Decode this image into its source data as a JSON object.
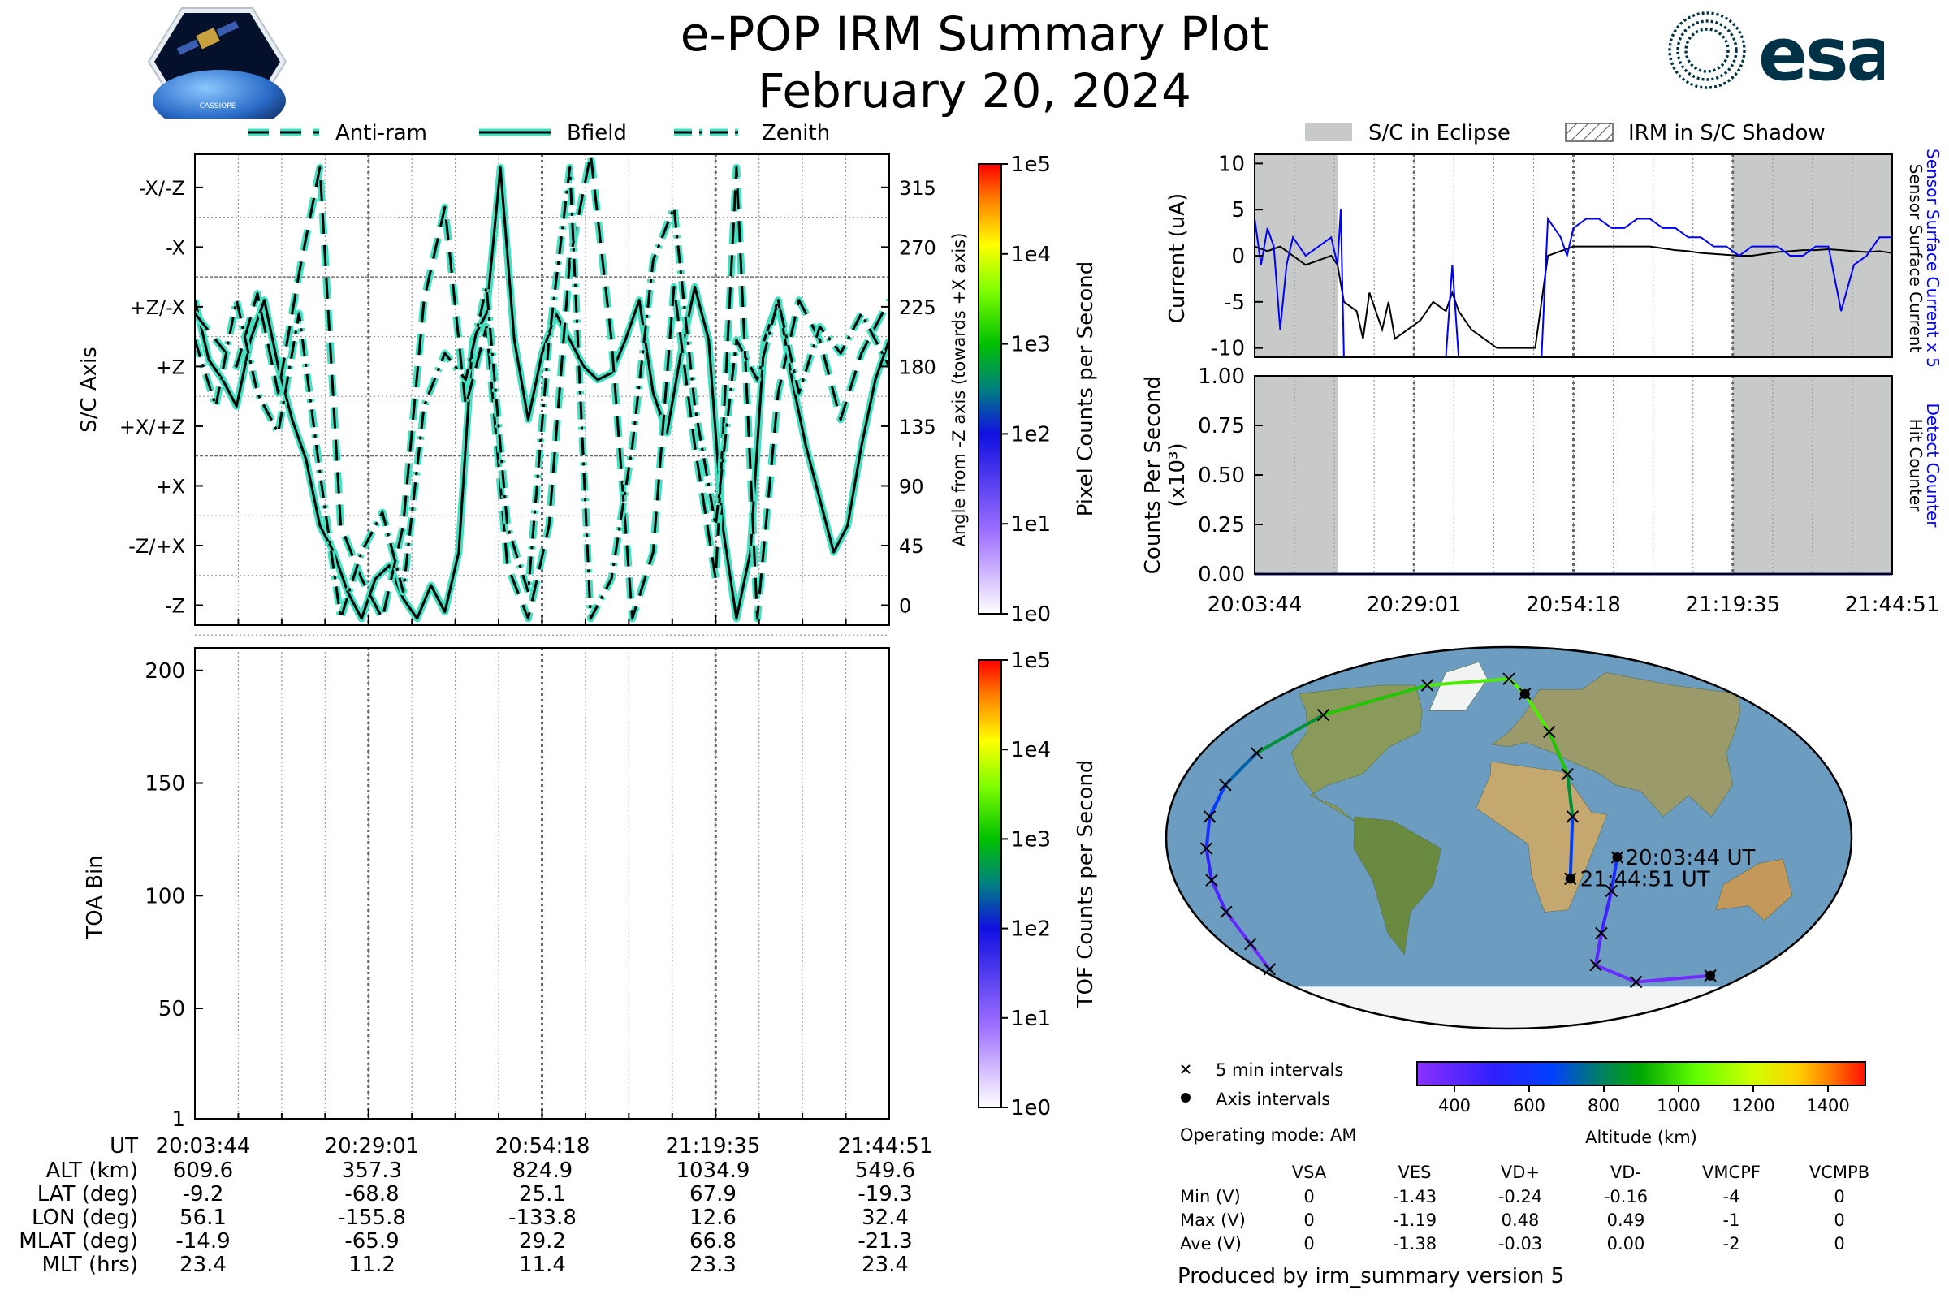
{
  "header": {
    "title": "e-POP IRM Summary Plot",
    "date": "February 20, 2024",
    "cassiope_logo_text": "CASSIOPE",
    "esa_logo_text": "esa"
  },
  "colors": {
    "trace": "#000000",
    "trace_halo": "#40e0c0",
    "blue_series": "#0000ff",
    "eclipse_shade": "#c8caca",
    "esa_blue": "#003247"
  },
  "chart_data": [
    {
      "id": "sc_axis_panel",
      "type": "line",
      "legend": [
        "Anti-ram",
        "Bfield",
        "Zenith"
      ],
      "legend_styles": [
        "dashed",
        "solid",
        "dashdot"
      ],
      "ylabel": "S/C Axis",
      "ylabel_right": "Angle from -Z axis (towards +X axis)",
      "y_tick_labels": [
        "-X/-Z",
        "-X",
        "+Z/-X",
        "+Z",
        "+X/+Z",
        "+X",
        "-Z/+X",
        "-Z"
      ],
      "y_tick_values": [
        315,
        270,
        225,
        180,
        135,
        90,
        45,
        0
      ],
      "ylim": [
        -15,
        340
      ],
      "x_tick_labels": [
        "20:03:44",
        "20:29:01",
        "20:54:18",
        "21:19:35",
        "21:44:51"
      ],
      "colorbar": {
        "label": "Pixel Counts per Second",
        "ticks": [
          "1e0",
          "1e1",
          "1e2",
          "1e3",
          "1e4",
          "1e5"
        ]
      },
      "series": [
        {
          "name": "Bfield",
          "x": [
            0,
            2,
            4,
            6,
            8,
            10,
            12,
            14,
            16,
            18,
            20,
            22,
            24,
            26,
            28,
            30,
            32,
            34,
            36,
            38,
            40,
            42,
            44,
            46,
            48,
            50,
            52,
            54,
            56,
            58,
            60,
            62,
            64,
            66,
            68,
            70,
            72,
            74,
            76,
            78,
            80,
            82,
            84,
            86,
            88,
            90,
            92,
            94,
            96,
            98,
            100
          ],
          "y": [
            230,
            185,
            170,
            150,
            200,
            230,
            180,
            140,
            110,
            60,
            40,
            10,
            -10,
            20,
            30,
            5,
            -10,
            15,
            -5,
            40,
            200,
            220,
            330,
            200,
            140,
            190,
            220,
            200,
            180,
            170,
            175,
            200,
            230,
            160,
            130,
            190,
            240,
            200,
            60,
            -10,
            40,
            200,
            230,
            170,
            120,
            80,
            40,
            60,
            120,
            170,
            200
          ]
        },
        {
          "name": "Anti-ram",
          "x": [
            0,
            3,
            6,
            9,
            12,
            15,
            18,
            21,
            24,
            27,
            30,
            33,
            36,
            39,
            42,
            45,
            48,
            51,
            54,
            57,
            60,
            63,
            66,
            69,
            72,
            75,
            78,
            81,
            84,
            87,
            90,
            93,
            96,
            100
          ],
          "y": [
            220,
            200,
            180,
            235,
            160,
            250,
            330,
            60,
            20,
            -10,
            60,
            230,
            300,
            150,
            210,
            30,
            -10,
            60,
            260,
            340,
            200,
            -10,
            40,
            240,
            120,
            20,
            330,
            -10,
            160,
            230,
            200,
            140,
            190,
            230
          ]
        },
        {
          "name": "Zenith",
          "x": [
            0,
            3,
            6,
            9,
            12,
            15,
            18,
            21,
            24,
            27,
            30,
            33,
            36,
            39,
            42,
            45,
            48,
            51,
            54,
            57,
            60,
            63,
            66,
            69,
            72,
            75,
            78,
            81,
            84,
            87,
            90,
            93,
            96,
            100
          ],
          "y": [
            200,
            150,
            230,
            160,
            130,
            220,
            100,
            -10,
            40,
            70,
            10,
            150,
            190,
            170,
            240,
            60,
            10,
            200,
            330,
            -10,
            20,
            120,
            260,
            300,
            150,
            60,
            200,
            170,
            230,
            160,
            210,
            190,
            220,
            180
          ]
        }
      ]
    },
    {
      "id": "toa_panel",
      "type": "heatmap",
      "ylabel": "TOA Bin",
      "y_ticks": [
        1,
        50,
        100,
        150,
        200
      ],
      "ylim": [
        1,
        210
      ],
      "x_tick_labels": [
        "20:03:44",
        "20:29:01",
        "20:54:18",
        "21:19:35",
        "21:44:51"
      ],
      "colorbar": {
        "label": "TOF Counts per Second",
        "ticks": [
          "1e0",
          "1e1",
          "1e2",
          "1e3",
          "1e4",
          "1e5"
        ]
      },
      "values": []
    },
    {
      "id": "current_panel",
      "type": "line",
      "legend": [
        "S/C in Eclipse",
        "IRM in S/C Shadow"
      ],
      "ylabel": "Current (uA)",
      "ylabel_right_blue": "Sensor Surface Current x 5",
      "ylabel_right_black": "Sensor Surface Current",
      "y_ticks": [
        10,
        5,
        0,
        -5,
        -10
      ],
      "ylim": [
        -11,
        11
      ],
      "eclipse_bands": [
        [
          0,
          13
        ],
        [
          75,
          100
        ]
      ],
      "series": [
        {
          "name": "Sensor Surface Current",
          "x": [
            0,
            2,
            4,
            6,
            8,
            10,
            12,
            13,
            14,
            16,
            17,
            18,
            20,
            21,
            22,
            24,
            26,
            28,
            30,
            31,
            32,
            34,
            36,
            38,
            40,
            42,
            44,
            45,
            46,
            48,
            50,
            52,
            54,
            56,
            58,
            60,
            62,
            64,
            66,
            68,
            70,
            72,
            74,
            76,
            78,
            80,
            82,
            84,
            86,
            88,
            90,
            92,
            94,
            96,
            98,
            100
          ],
          "y": [
            1,
            0.5,
            1,
            0,
            -1,
            -0.5,
            0,
            -1,
            -5,
            -6,
            -9,
            -4,
            -8,
            -5,
            -9,
            -8,
            -7,
            -5,
            -6,
            -4,
            -6,
            -8,
            -9,
            -10,
            -10,
            -10,
            -10,
            -5,
            0,
            0.5,
            1,
            1,
            1,
            1,
            1,
            1,
            1,
            0.8,
            0.6,
            0.5,
            0.3,
            0.2,
            0.1,
            0,
            0,
            0.2,
            0.4,
            0.5,
            0.6,
            0.6,
            0.7,
            0.6,
            0.5,
            0.4,
            0.5,
            0.3
          ]
        },
        {
          "name": "Sensor Surface Current x 5",
          "x": [
            0,
            1,
            2,
            3,
            4,
            5,
            6,
            7,
            8,
            10,
            12,
            13,
            13.5,
            14,
            16,
            18,
            20,
            22,
            24,
            26,
            28,
            30,
            31,
            32,
            33,
            34,
            36,
            38,
            40,
            42,
            44,
            45,
            46,
            48,
            49,
            50,
            52,
            54,
            56,
            58,
            60,
            62,
            64,
            66,
            68,
            70,
            72,
            74,
            76,
            78,
            80,
            82,
            84,
            86,
            88,
            90,
            92,
            94,
            96,
            98,
            100
          ],
          "y": [
            4,
            -1,
            3,
            1,
            -8,
            -1,
            2,
            1,
            0,
            1,
            2,
            -1,
            5,
            -11,
            -11,
            -11,
            -11,
            -11,
            -11,
            -11,
            -11,
            -11,
            -1,
            -11,
            -11,
            -11,
            -11,
            -11,
            -11,
            -11,
            -11,
            -11,
            4,
            2,
            0,
            3,
            4,
            4,
            3,
            3,
            4,
            4,
            3,
            3,
            2,
            2,
            1,
            1,
            0,
            1,
            1,
            1,
            0,
            0,
            1,
            1,
            -6,
            -1,
            0,
            2,
            2
          ]
        }
      ]
    },
    {
      "id": "counts_panel",
      "type": "line",
      "ylabel": "Counts Per Second (x10³)",
      "ylabel_right_blue": "Detect Counter",
      "ylabel_right_black": "Hit Counter",
      "y_ticks": [
        "1.00",
        "0.75",
        "0.50",
        "0.25",
        "0.00"
      ],
      "ylim": [
        0,
        1
      ],
      "x_tick_labels": [
        "20:03:44",
        "20:29:01",
        "20:54:18",
        "21:19:35",
        "21:44:51"
      ],
      "series": [
        {
          "name": "Hit Counter",
          "x": [
            0,
            100
          ],
          "y": [
            0,
            0
          ]
        },
        {
          "name": "Detect Counter",
          "x": [
            0,
            100
          ],
          "y": [
            0,
            0
          ]
        }
      ]
    },
    {
      "id": "orbit_map",
      "type": "scatter",
      "start_label": "20:03:44 UT",
      "end_label": "21:44:51 UT",
      "colorbar": {
        "label": "Altitude (km)",
        "ticks": [
          400,
          600,
          800,
          1000,
          1200,
          1400
        ],
        "range": [
          300,
          1500
        ]
      },
      "track": [
        {
          "lon": 56.1,
          "lat": -9.2,
          "alt": 610
        },
        {
          "lon": 55,
          "lat": -25,
          "alt": 520
        },
        {
          "lon": 55,
          "lat": -45,
          "alt": 430
        },
        {
          "lon": 60,
          "lat": -60,
          "alt": 380
        },
        {
          "lon": 100,
          "lat": -68,
          "alt": 360
        },
        {
          "lon": 150,
          "lat": -65,
          "alt": 350
        },
        {
          "lon": -170,
          "lat": -62,
          "alt": 350
        },
        {
          "lon": -160,
          "lat": -50,
          "alt": 360
        },
        {
          "lon": -158,
          "lat": -35,
          "alt": 400
        },
        {
          "lon": -157,
          "lat": -20,
          "alt": 460
        },
        {
          "lon": -156,
          "lat": -5,
          "alt": 530
        },
        {
          "lon": -155,
          "lat": 10,
          "alt": 600
        },
        {
          "lon": -152,
          "lat": 25,
          "alt": 680
        },
        {
          "lon": -145,
          "lat": 40,
          "alt": 780
        },
        {
          "lon": -125,
          "lat": 58,
          "alt": 900
        },
        {
          "lon": -70,
          "lat": 72,
          "alt": 1000
        },
        {
          "lon": 0,
          "lat": 75,
          "alt": 1030
        },
        {
          "lon": 12.6,
          "lat": 67.9,
          "alt": 1035
        },
        {
          "lon": 25,
          "lat": 50,
          "alt": 1000
        },
        {
          "lon": 32,
          "lat": 30,
          "alt": 900
        },
        {
          "lon": 33,
          "lat": 10,
          "alt": 780
        },
        {
          "lon": 32.4,
          "lat": -19.3,
          "alt": 550
        }
      ],
      "legend": [
        "5 min intervals",
        "Axis intervals"
      ]
    }
  ],
  "ut_table": {
    "row_labels": [
      "UT",
      "ALT (km)",
      "LAT (deg)",
      "LON (deg)",
      "MLAT (deg)",
      "MLT (hrs)"
    ],
    "columns": [
      [
        "20:03:44",
        "609.6",
        "-9.2",
        "56.1",
        "-14.9",
        "23.4"
      ],
      [
        "20:29:01",
        "357.3",
        "-68.8",
        "-155.8",
        "-65.9",
        "11.2"
      ],
      [
        "20:54:18",
        "824.9",
        "25.1",
        "-133.8",
        "29.2",
        "11.4"
      ],
      [
        "21:19:35",
        "1034.9",
        "67.9",
        "12.6",
        "66.8",
        "23.3"
      ],
      [
        "21:44:51",
        "549.6",
        "-19.3",
        "32.4",
        "-21.3",
        "23.4"
      ]
    ]
  },
  "operating_mode": "Operating mode: AM",
  "voltage_table": {
    "headers": [
      "VSA",
      "VES",
      "VD+",
      "VD-",
      "VMCPF",
      "VCMPB"
    ],
    "rows": [
      {
        "label": "Min (V)",
        "values": [
          "0",
          "-1.43",
          "-0.24",
          "-0.16",
          "-4",
          "0"
        ]
      },
      {
        "label": "Max (V)",
        "values": [
          "0",
          "-1.19",
          "0.48",
          "0.49",
          "-1",
          "0"
        ]
      },
      {
        "label": "Ave (V)",
        "values": [
          "0",
          "-1.38",
          "-0.03",
          "0.00",
          "-2",
          "0"
        ]
      }
    ]
  },
  "footer": "Produced by irm_summary version 5"
}
